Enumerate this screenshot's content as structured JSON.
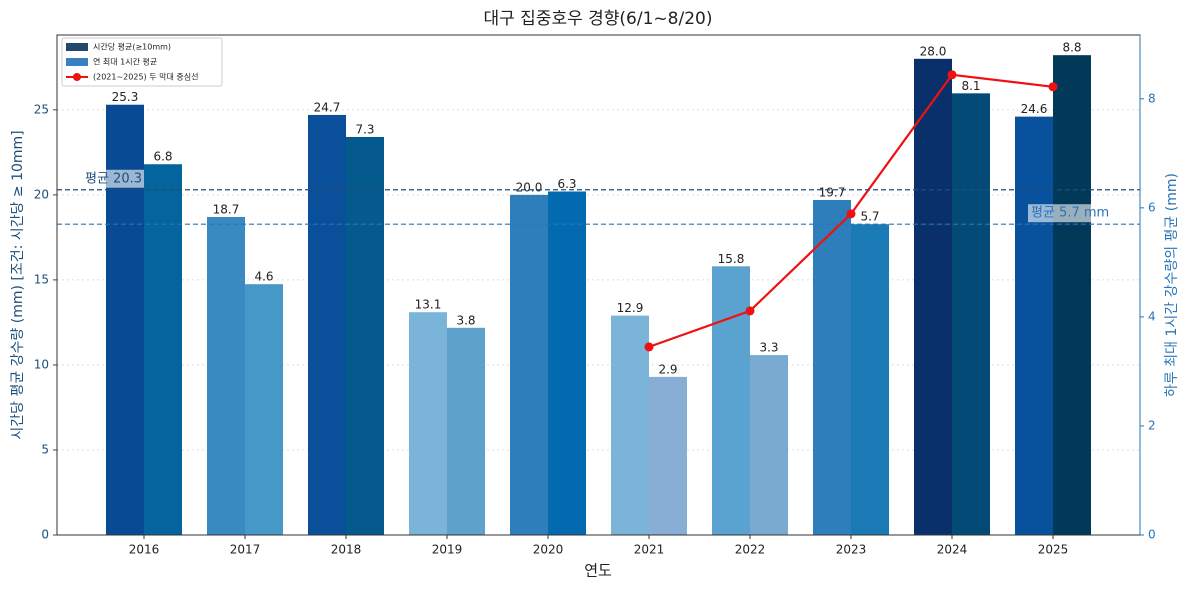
{
  "chart_data": {
    "type": "bar",
    "title": "대구 집중호우 경향(6/1~8/20)",
    "xlabel": "연도",
    "ylabel": "시간당 평균 강수량 (mm)  [조건: 시간당 ≥ 10mm]",
    "y2label": "하루 최대 1시간 강수량의 평균 (mm)",
    "categories": [
      "2016",
      "2017",
      "2018",
      "2019",
      "2020",
      "2021",
      "2022",
      "2023",
      "2024",
      "2025"
    ],
    "series": [
      {
        "name": "시간당 평균(≥10mm)",
        "color": "#23486e",
        "axis": "y",
        "colors": [
          "#084b94",
          "#3a8ac2",
          "#0a4f9a",
          "#7ab4d8",
          "#2f7ebc",
          "#7ab4d8",
          "#5aa2d0",
          "#2f7ebc",
          "#0a306b",
          "#08519c"
        ],
        "values": [
          25.3,
          18.7,
          24.7,
          13.1,
          20.0,
          12.9,
          15.8,
          19.7,
          28.0,
          24.6
        ],
        "value_labels": [
          "25.3",
          "18.7",
          "24.7",
          "13.1",
          "20.0",
          "12.9",
          "15.8",
          "19.7",
          "28.0",
          "24.6"
        ]
      },
      {
        "name": "연 최대 1시간 평균",
        "color": "#3a7fc1",
        "axis": "y2",
        "colors": [
          "#04649e",
          "#4598c8",
          "#045a8d",
          "#5ea2cc",
          "#046aaf",
          "#89aed6",
          "#7aaad0",
          "#197ab6",
          "#034a77",
          "#023858"
        ],
        "values": [
          6.8,
          4.6,
          7.3,
          3.8,
          6.3,
          2.9,
          3.3,
          5.7,
          8.1,
          8.8
        ],
        "value_labels": [
          "6.8",
          "4.6",
          "7.3",
          "3.8",
          "6.3",
          "2.9",
          "3.3",
          "5.7",
          "8.1",
          "8.8"
        ]
      },
      {
        "name": "(2021~2025) 두 막대 중심선",
        "color": "#ee1111",
        "axis": "y2",
        "type": "line",
        "values": [
          null,
          null,
          null,
          null,
          null,
          3.45,
          4.11,
          5.89,
          8.44,
          8.22
        ]
      }
    ],
    "reference_lines": [
      {
        "value": 20.3,
        "label": "평균 20.3",
        "axis": "y",
        "color": "#1f4e79"
      },
      {
        "value": 5.7,
        "label": "평균 5.7 mm",
        "axis": "y2",
        "color": "#2a74b5"
      }
    ],
    "ylim": [
      0,
      29.4
    ],
    "yticks": [
      0,
      5,
      10,
      15,
      20,
      25
    ],
    "y2lim": [
      0,
      9.17
    ],
    "y2ticks": [
      0,
      2,
      4,
      6,
      8
    ],
    "grid": true,
    "legend": "upper left"
  }
}
